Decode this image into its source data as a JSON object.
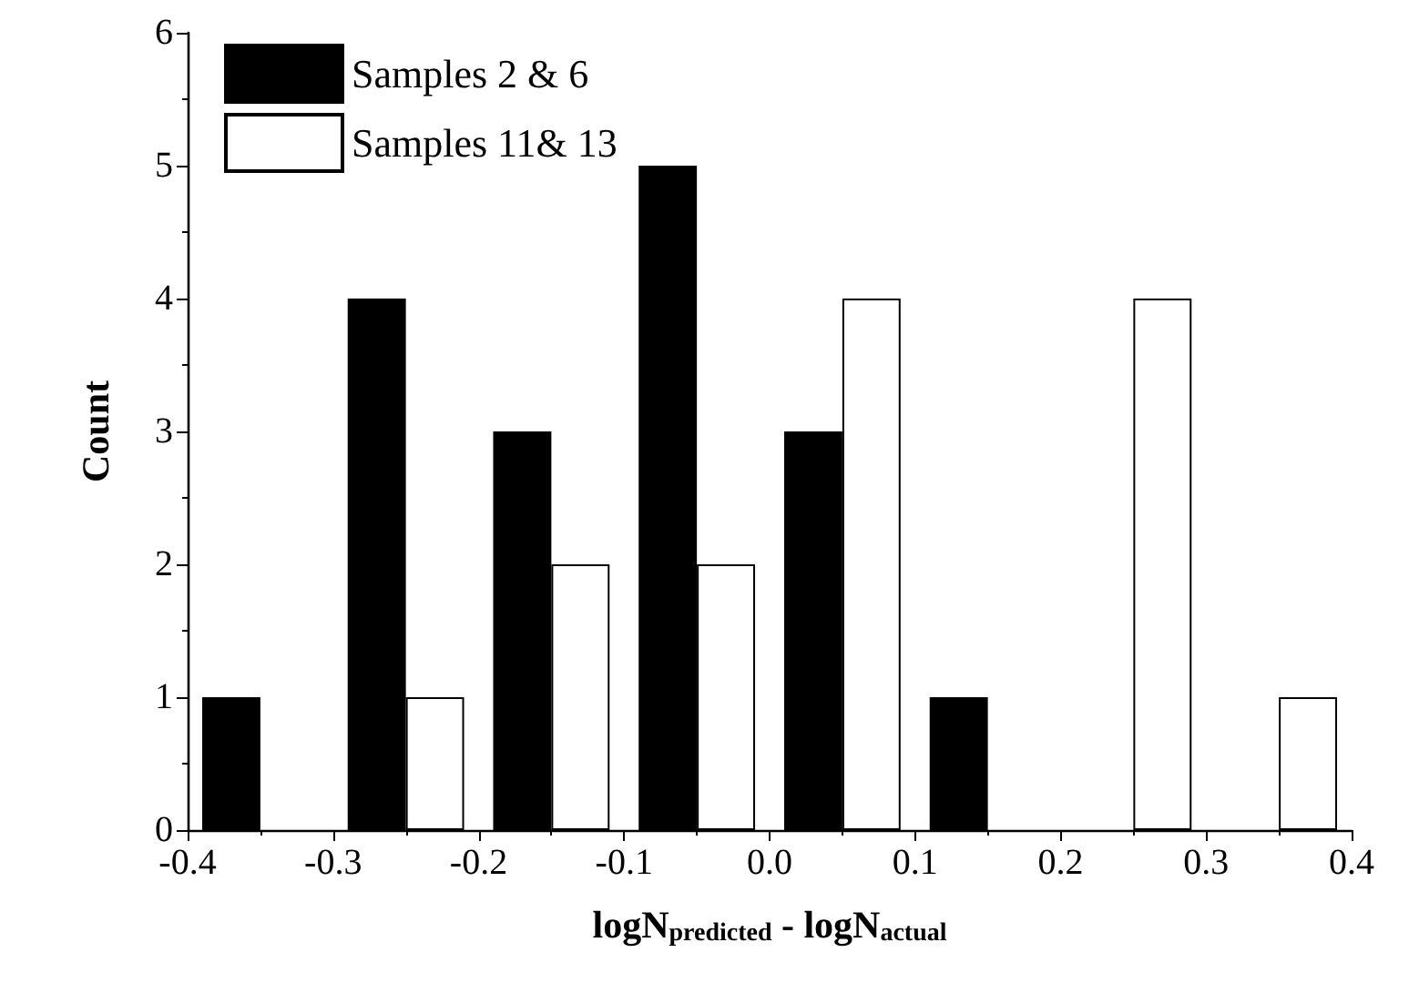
{
  "chart_data": {
    "type": "bar",
    "xlabel": "logN$_{predicted}$ - logN$_{actual}$",
    "ylabel": "Count",
    "series": [
      {
        "name": "Samples 2 & 6",
        "color": "#000000",
        "x": [
          -0.37,
          -0.27,
          -0.17,
          -0.07,
          0.03,
          0.13
        ],
        "values": [
          1,
          4,
          3,
          5,
          3,
          1
        ]
      },
      {
        "name": "Samples 11& 13",
        "color": "#ffffff",
        "x": [
          -0.23,
          -0.13,
          -0.03,
          0.07,
          0.27,
          0.37
        ],
        "values": [
          1,
          2,
          2,
          4,
          4,
          1
        ]
      }
    ],
    "xlim": [
      -0.4,
      0.4
    ],
    "xticks": [
      -0.4,
      -0.3,
      -0.2,
      -0.1,
      {
        "value": 0,
        "label": "0.0"
      },
      0.1,
      0.2,
      0.3,
      0.4
    ],
    "ylim": [
      0,
      6
    ],
    "yticks": [
      0,
      1,
      2,
      3,
      4,
      5,
      6
    ],
    "grid": false,
    "legend": "top left"
  }
}
